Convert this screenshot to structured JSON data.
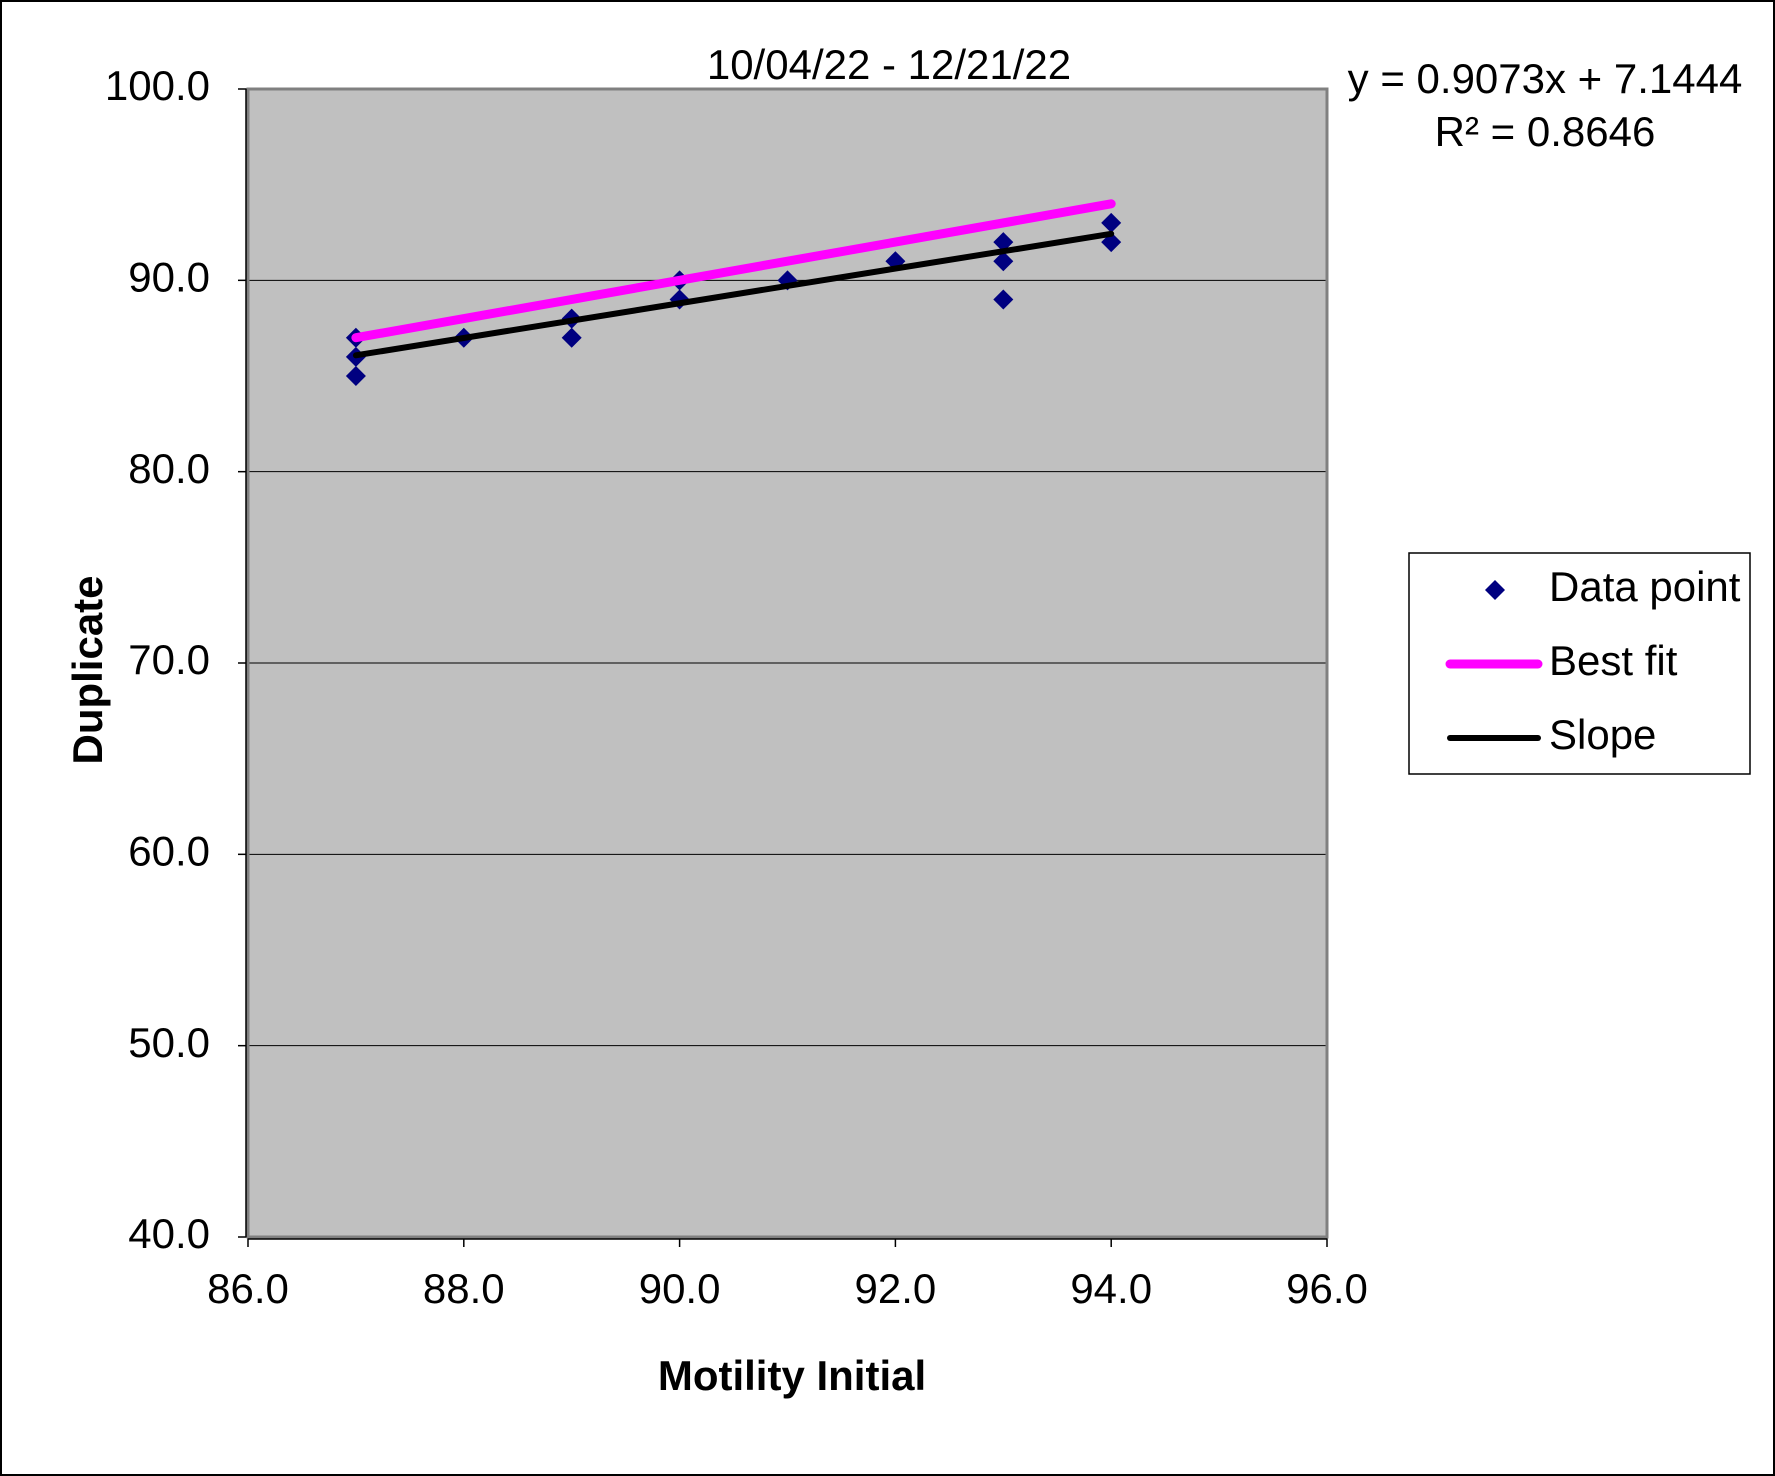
{
  "chart_data": {
    "type": "scatter",
    "title": "10/04/22 - 12/21/22",
    "x_label": "Motility Initial",
    "y_label": "Duplicate",
    "annotations": [
      "y = 0.9073x + 7.1444",
      "R² = 0.8646"
    ],
    "xlim": [
      86,
      96
    ],
    "ylim": [
      40,
      100
    ],
    "xticks": [
      {
        "value": 86,
        "label": "86.0"
      },
      {
        "value": 88,
        "label": "88.0"
      },
      {
        "value": 90,
        "label": "90.0"
      },
      {
        "value": 92,
        "label": "92.0"
      },
      {
        "value": 94,
        "label": "94.0"
      },
      {
        "value": 96,
        "label": "96.0"
      }
    ],
    "yticks": [
      {
        "value": 40,
        "label": "40.0"
      },
      {
        "value": 50,
        "label": "50.0"
      },
      {
        "value": 60,
        "label": "60.0"
      },
      {
        "value": 70,
        "label": "70.0"
      },
      {
        "value": 80,
        "label": "80.0"
      },
      {
        "value": 90,
        "label": "90.0"
      },
      {
        "value": 100,
        "label": "100.0"
      }
    ],
    "grid": true,
    "legend": "right",
    "series": [
      {
        "name": "Data point",
        "color": "#000080",
        "mode": "markers",
        "x": [
          87,
          87,
          87,
          88,
          89,
          89,
          90,
          90,
          91,
          92,
          93,
          93,
          93,
          94,
          94
        ],
        "values": [
          87,
          86,
          85,
          87,
          88,
          87,
          90,
          89,
          90,
          91,
          92,
          91,
          89,
          93,
          92
        ]
      },
      {
        "name": "Best fit",
        "color": "#ff00ff",
        "mode": "lines",
        "width": 9,
        "x": [
          87,
          94
        ],
        "values": [
          87,
          94
        ]
      },
      {
        "name": "Slope",
        "color": "#000000",
        "mode": "lines",
        "width": 6,
        "x": [
          87,
          94
        ],
        "values": [
          86.08,
          92.43
        ]
      }
    ]
  }
}
